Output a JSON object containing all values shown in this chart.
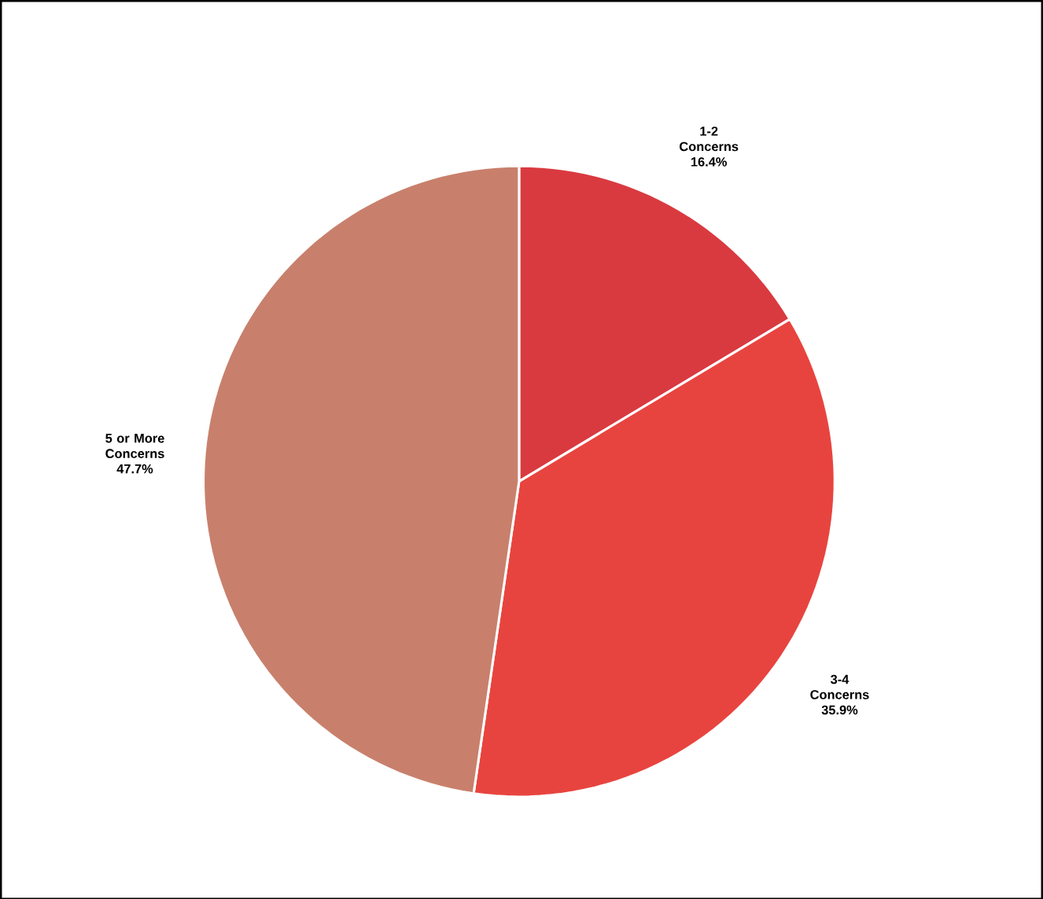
{
  "chart_data": {
    "type": "pie",
    "categories": [
      "1-2 Concerns",
      "3-4 Concerns",
      "5 or More Concerns"
    ],
    "values": [
      16.4,
      35.9,
      47.7
    ],
    "value_labels": [
      "16.4%",
      "35.9%",
      "47.7%"
    ],
    "colors": [
      "#d93a40",
      "#e8443f",
      "#c8806c"
    ]
  }
}
